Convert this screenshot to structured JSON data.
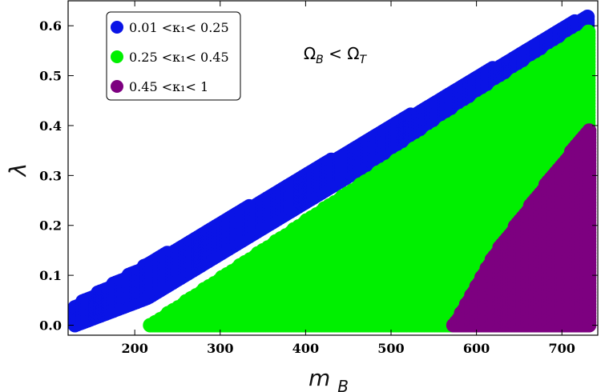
{
  "chart_data": {
    "type": "scatter",
    "xlabel": "m_B",
    "ylabel": "λ",
    "xlim": [
      122,
      742
    ],
    "ylim": [
      -0.02,
      0.65
    ],
    "xticks": [
      200,
      300,
      400,
      500,
      600,
      700
    ],
    "yticks": [
      0.0,
      0.1,
      0.2,
      0.3,
      0.4,
      0.5,
      0.6
    ],
    "xtick_labels": [
      "200",
      "300",
      "400",
      "500",
      "600",
      "700"
    ],
    "ytick_labels": [
      "0.0",
      "0.1",
      "0.2",
      "0.3",
      "0.4",
      "0.5",
      "0.6"
    ],
    "annotation": "Ω_B < Ω_T",
    "legend_position": "top-left",
    "legend": [
      {
        "label": "0.01 <κ₁< 0.25",
        "color": "#0a14e6"
      },
      {
        "label": "0.25 <κ₁< 0.45",
        "color": "#00f000"
      },
      {
        "label": "0.45 <κ₁< 1",
        "color": "#7d0080"
      }
    ],
    "series": [
      {
        "name": "0.01 <κ₁< 0.25",
        "color": "#0a14e6",
        "region": {
          "x": [
            130,
            732
          ],
          "y_lower_at_x": [
            [
              130,
              0.0
            ],
            [
              215,
              0.055
            ],
            [
              732,
              0.59
            ]
          ],
          "y_upper_at_x": [
            [
              130,
              0.04
            ],
            [
              732,
              0.625
            ]
          ]
        }
      },
      {
        "name": "0.25 <κ₁< 0.45",
        "color": "#00f000",
        "region": {
          "x": [
            218,
            732
          ],
          "y_lower": 0.0,
          "y_upper_at_x": [
            [
              218,
              0.0
            ],
            [
              732,
              0.59
            ]
          ]
        }
      },
      {
        "name": "0.45 <κ₁< 1",
        "color": "#7d0080",
        "region": {
          "x": [
            573,
            732
          ],
          "y_lower": 0.0,
          "y_upper_at_x": [
            [
              573,
              0.0
            ],
            [
              620,
              0.14
            ],
            [
              680,
              0.28
            ],
            [
              732,
              0.395
            ]
          ]
        }
      }
    ]
  }
}
